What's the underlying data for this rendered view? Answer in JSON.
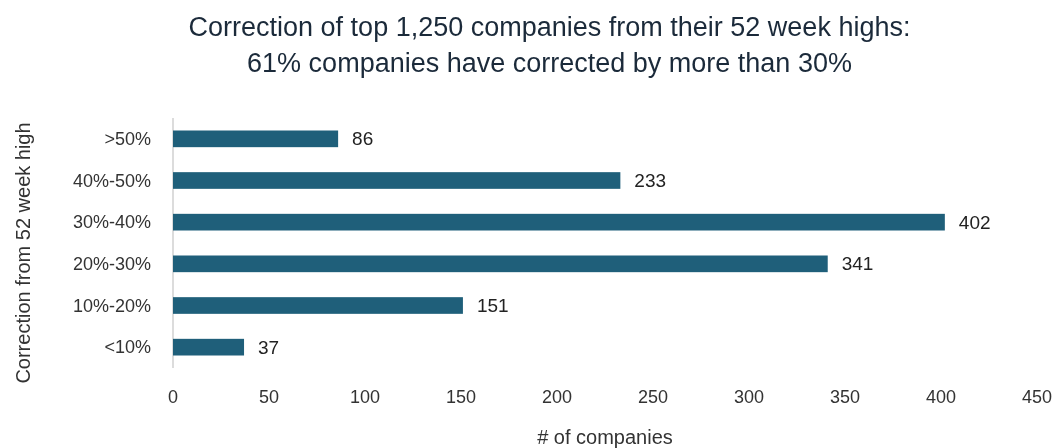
{
  "chart_data": {
    "type": "bar",
    "orientation": "horizontal",
    "title": "Correction of top 1,250 companies from their 52 week highs:\n61% companies have corrected by more than 30%",
    "xlabel": "# of companies",
    "ylabel": "Correction from 52 week high",
    "categories": [
      ">50%",
      "40%-50%",
      "30%-40%",
      "20%-30%",
      "10%-20%",
      "<10%"
    ],
    "values": [
      86,
      233,
      402,
      341,
      151,
      37
    ],
    "color": "#1f5f7a",
    "xlim": [
      0,
      450
    ],
    "xticks": [
      0,
      50,
      100,
      150,
      200,
      250,
      300,
      350,
      400,
      450
    ],
    "data_labels": true
  }
}
